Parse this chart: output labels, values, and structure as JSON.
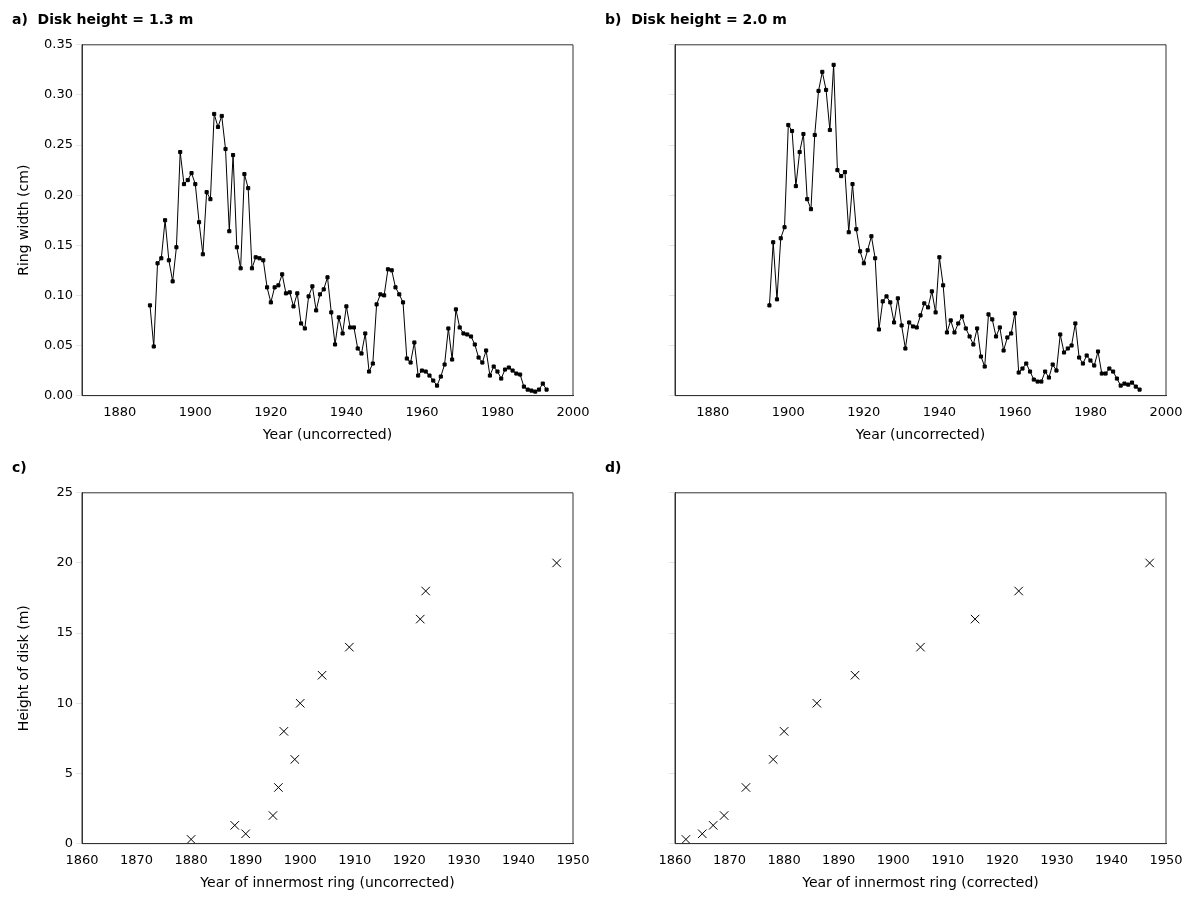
{
  "chart_data": [
    {
      "type": "line",
      "title": "a)  Disk height = 1.3 m",
      "xlabel": "Year (uncorrected)",
      "ylabel": "Ring width (cm)",
      "marker": "square",
      "grid": false,
      "legend": false,
      "xlim": [
        1870,
        2000
      ],
      "xticks": [
        1880,
        1900,
        1920,
        1940,
        1960,
        1980,
        2000
      ],
      "ylim": [
        0,
        0.35
      ],
      "yticks": [
        {
          "value": 0,
          "label": "0.00"
        },
        0.05,
        {
          "value": 0.1,
          "label": "0.10"
        },
        0.15,
        {
          "value": 0.2,
          "label": "0.20"
        },
        0.25,
        {
          "value": 0.3,
          "label": "0.30"
        },
        0.35
      ],
      "series": [
        {
          "color": "#000000",
          "x": [
            1888,
            1889,
            1890,
            1891,
            1892,
            1893,
            1894,
            1895,
            1896,
            1897,
            1898,
            1899,
            1900,
            1901,
            1902,
            1903,
            1904,
            1905,
            1906,
            1907,
            1908,
            1909,
            1910,
            1911,
            1912,
            1913,
            1914,
            1915,
            1916,
            1917,
            1918,
            1919,
            1920,
            1921,
            1922,
            1923,
            1924,
            1925,
            1926,
            1927,
            1928,
            1929,
            1930,
            1931,
            1932,
            1933,
            1934,
            1935,
            1936,
            1937,
            1938,
            1939,
            1940,
            1941,
            1942,
            1943,
            1944,
            1945,
            1946,
            1947,
            1948,
            1949,
            1950,
            1951,
            1952,
            1953,
            1954,
            1955,
            1956,
            1957,
            1958,
            1959,
            1960,
            1961,
            1962,
            1963,
            1964,
            1965,
            1966,
            1967,
            1968,
            1969,
            1970,
            1971,
            1972,
            1973,
            1974,
            1975,
            1976,
            1977,
            1978,
            1979,
            1980,
            1981,
            1982,
            1983,
            1984,
            1985,
            1986,
            1987,
            1988,
            1989,
            1990,
            1991,
            1992,
            1993
          ],
          "values": [
            0.09,
            0.049,
            0.132,
            0.137,
            0.175,
            0.135,
            0.114,
            0.148,
            0.243,
            0.211,
            0.215,
            0.222,
            0.211,
            0.173,
            0.141,
            0.203,
            0.196,
            0.281,
            0.268,
            0.279,
            0.246,
            0.164,
            0.24,
            0.148,
            0.127,
            0.221,
            0.207,
            0.127,
            0.138,
            0.137,
            0.135,
            0.108,
            0.093,
            0.108,
            0.11,
            0.121,
            0.102,
            0.103,
            0.089,
            0.102,
            0.072,
            0.067,
            0.099,
            0.109,
            0.085,
            0.101,
            0.106,
            0.118,
            0.083,
            0.051,
            0.078,
            0.062,
            0.089,
            0.068,
            0.068,
            0.047,
            0.042,
            0.062,
            0.024,
            0.032,
            0.091,
            0.101,
            0.1,
            0.126,
            0.125,
            0.108,
            0.101,
            0.093,
            0.037,
            0.033,
            0.053,
            0.02,
            0.025,
            0.024,
            0.02,
            0.015,
            0.01,
            0.019,
            0.031,
            0.067,
            0.036,
            0.086,
            0.068,
            0.062,
            0.061,
            0.059,
            0.051,
            0.038,
            0.033,
            0.045,
            0.02,
            0.029,
            0.024,
            0.017,
            0.026,
            0.028,
            0.025,
            0.022,
            0.021,
            0.009,
            0.006,
            0.005,
            0.004,
            0.006,
            0.012,
            0.006
          ]
        }
      ]
    },
    {
      "type": "line",
      "title": "b)  Disk height = 2.0 m",
      "xlabel": "Year (uncorrected)",
      "marker": "square",
      "grid": false,
      "legend": false,
      "tick_labels": "x",
      "xlim": [
        1870,
        2000
      ],
      "xticks": [
        1880,
        1900,
        1920,
        1940,
        1960,
        1980,
        2000
      ],
      "ylim": [
        0,
        0.35
      ],
      "yticks": [
        0,
        0.05,
        0.1,
        0.15,
        0.2,
        0.25,
        0.3,
        0.35
      ],
      "series": [
        {
          "color": "#000000",
          "x": [
            1895,
            1896,
            1897,
            1898,
            1899,
            1900,
            1901,
            1902,
            1903,
            1904,
            1905,
            1906,
            1907,
            1908,
            1909,
            1910,
            1911,
            1912,
            1913,
            1914,
            1915,
            1916,
            1917,
            1918,
            1919,
            1920,
            1921,
            1922,
            1923,
            1924,
            1925,
            1926,
            1927,
            1928,
            1929,
            1930,
            1931,
            1932,
            1933,
            1934,
            1935,
            1936,
            1937,
            1938,
            1939,
            1940,
            1941,
            1942,
            1943,
            1944,
            1945,
            1946,
            1947,
            1948,
            1949,
            1950,
            1951,
            1952,
            1953,
            1954,
            1955,
            1956,
            1957,
            1958,
            1959,
            1960,
            1961,
            1962,
            1963,
            1964,
            1965,
            1966,
            1967,
            1968,
            1969,
            1970,
            1971,
            1972,
            1973,
            1974,
            1975,
            1976,
            1977,
            1978,
            1979,
            1980,
            1981,
            1982,
            1983,
            1984,
            1985,
            1986,
            1987,
            1988,
            1989,
            1990,
            1991,
            1992,
            1993
          ],
          "values": [
            0.09,
            0.153,
            0.096,
            0.157,
            0.168,
            0.27,
            0.264,
            0.209,
            0.243,
            0.261,
            0.196,
            0.186,
            0.26,
            0.304,
            0.323,
            0.305,
            0.265,
            0.33,
            0.225,
            0.219,
            0.223,
            0.163,
            0.211,
            0.166,
            0.144,
            0.132,
            0.145,
            0.159,
            0.137,
            0.066,
            0.094,
            0.099,
            0.093,
            0.073,
            0.097,
            0.07,
            0.047,
            0.073,
            0.069,
            0.068,
            0.08,
            0.092,
            0.088,
            0.104,
            0.083,
            0.138,
            0.11,
            0.063,
            0.075,
            0.063,
            0.072,
            0.079,
            0.067,
            0.059,
            0.051,
            0.067,
            0.039,
            0.029,
            0.081,
            0.076,
            0.059,
            0.068,
            0.045,
            0.058,
            0.062,
            0.082,
            0.023,
            0.027,
            0.032,
            0.024,
            0.016,
            0.014,
            0.014,
            0.024,
            0.018,
            0.031,
            0.025,
            0.061,
            0.043,
            0.047,
            0.05,
            0.072,
            0.038,
            0.032,
            0.04,
            0.035,
            0.03,
            0.044,
            0.022,
            0.022,
            0.027,
            0.024,
            0.017,
            0.01,
            0.012,
            0.011,
            0.013,
            0.009,
            0.006
          ]
        }
      ]
    },
    {
      "type": "scatter",
      "title": "c)",
      "xlabel": "Year of innermost ring (uncorrected)",
      "ylabel": "Height of disk (m)",
      "marker": "cross",
      "grid": false,
      "legend": false,
      "xlim": [
        1860,
        1950
      ],
      "xticks": [
        1860,
        1870,
        1880,
        1890,
        1900,
        1910,
        1920,
        1930,
        1940,
        1950
      ],
      "ylim": [
        0,
        25
      ],
      "yticks": [
        0,
        5,
        10,
        15,
        20,
        25
      ],
      "series": [
        {
          "color": "#000000",
          "x": [
            1880,
            1888,
            1890,
            1895,
            1896,
            1897,
            1899,
            1900,
            1904,
            1909,
            1922,
            1923,
            1947
          ],
          "values": [
            0.3,
            1.3,
            0.7,
            2,
            4,
            8,
            6,
            10,
            12,
            14,
            16,
            18,
            20
          ]
        }
      ]
    },
    {
      "type": "scatter",
      "title": "d)",
      "xlabel": "Year of innermost ring (corrected)",
      "marker": "cross",
      "grid": false,
      "legend": false,
      "tick_labels": "x",
      "xlim": [
        1860,
        1950
      ],
      "xticks": [
        1860,
        1870,
        1880,
        1890,
        1900,
        1910,
        1920,
        1930,
        1940,
        1950
      ],
      "ylim": [
        0,
        25
      ],
      "yticks": [
        0,
        5,
        10,
        15,
        20,
        25
      ],
      "series": [
        {
          "color": "#000000",
          "x": [
            1862,
            1865,
            1867,
            1869,
            1873,
            1878,
            1880,
            1886,
            1893,
            1905,
            1915,
            1923,
            1947
          ],
          "values": [
            0.3,
            0.7,
            1.3,
            2,
            4,
            6,
            8,
            10,
            12,
            14,
            16,
            18,
            20
          ]
        }
      ]
    }
  ]
}
